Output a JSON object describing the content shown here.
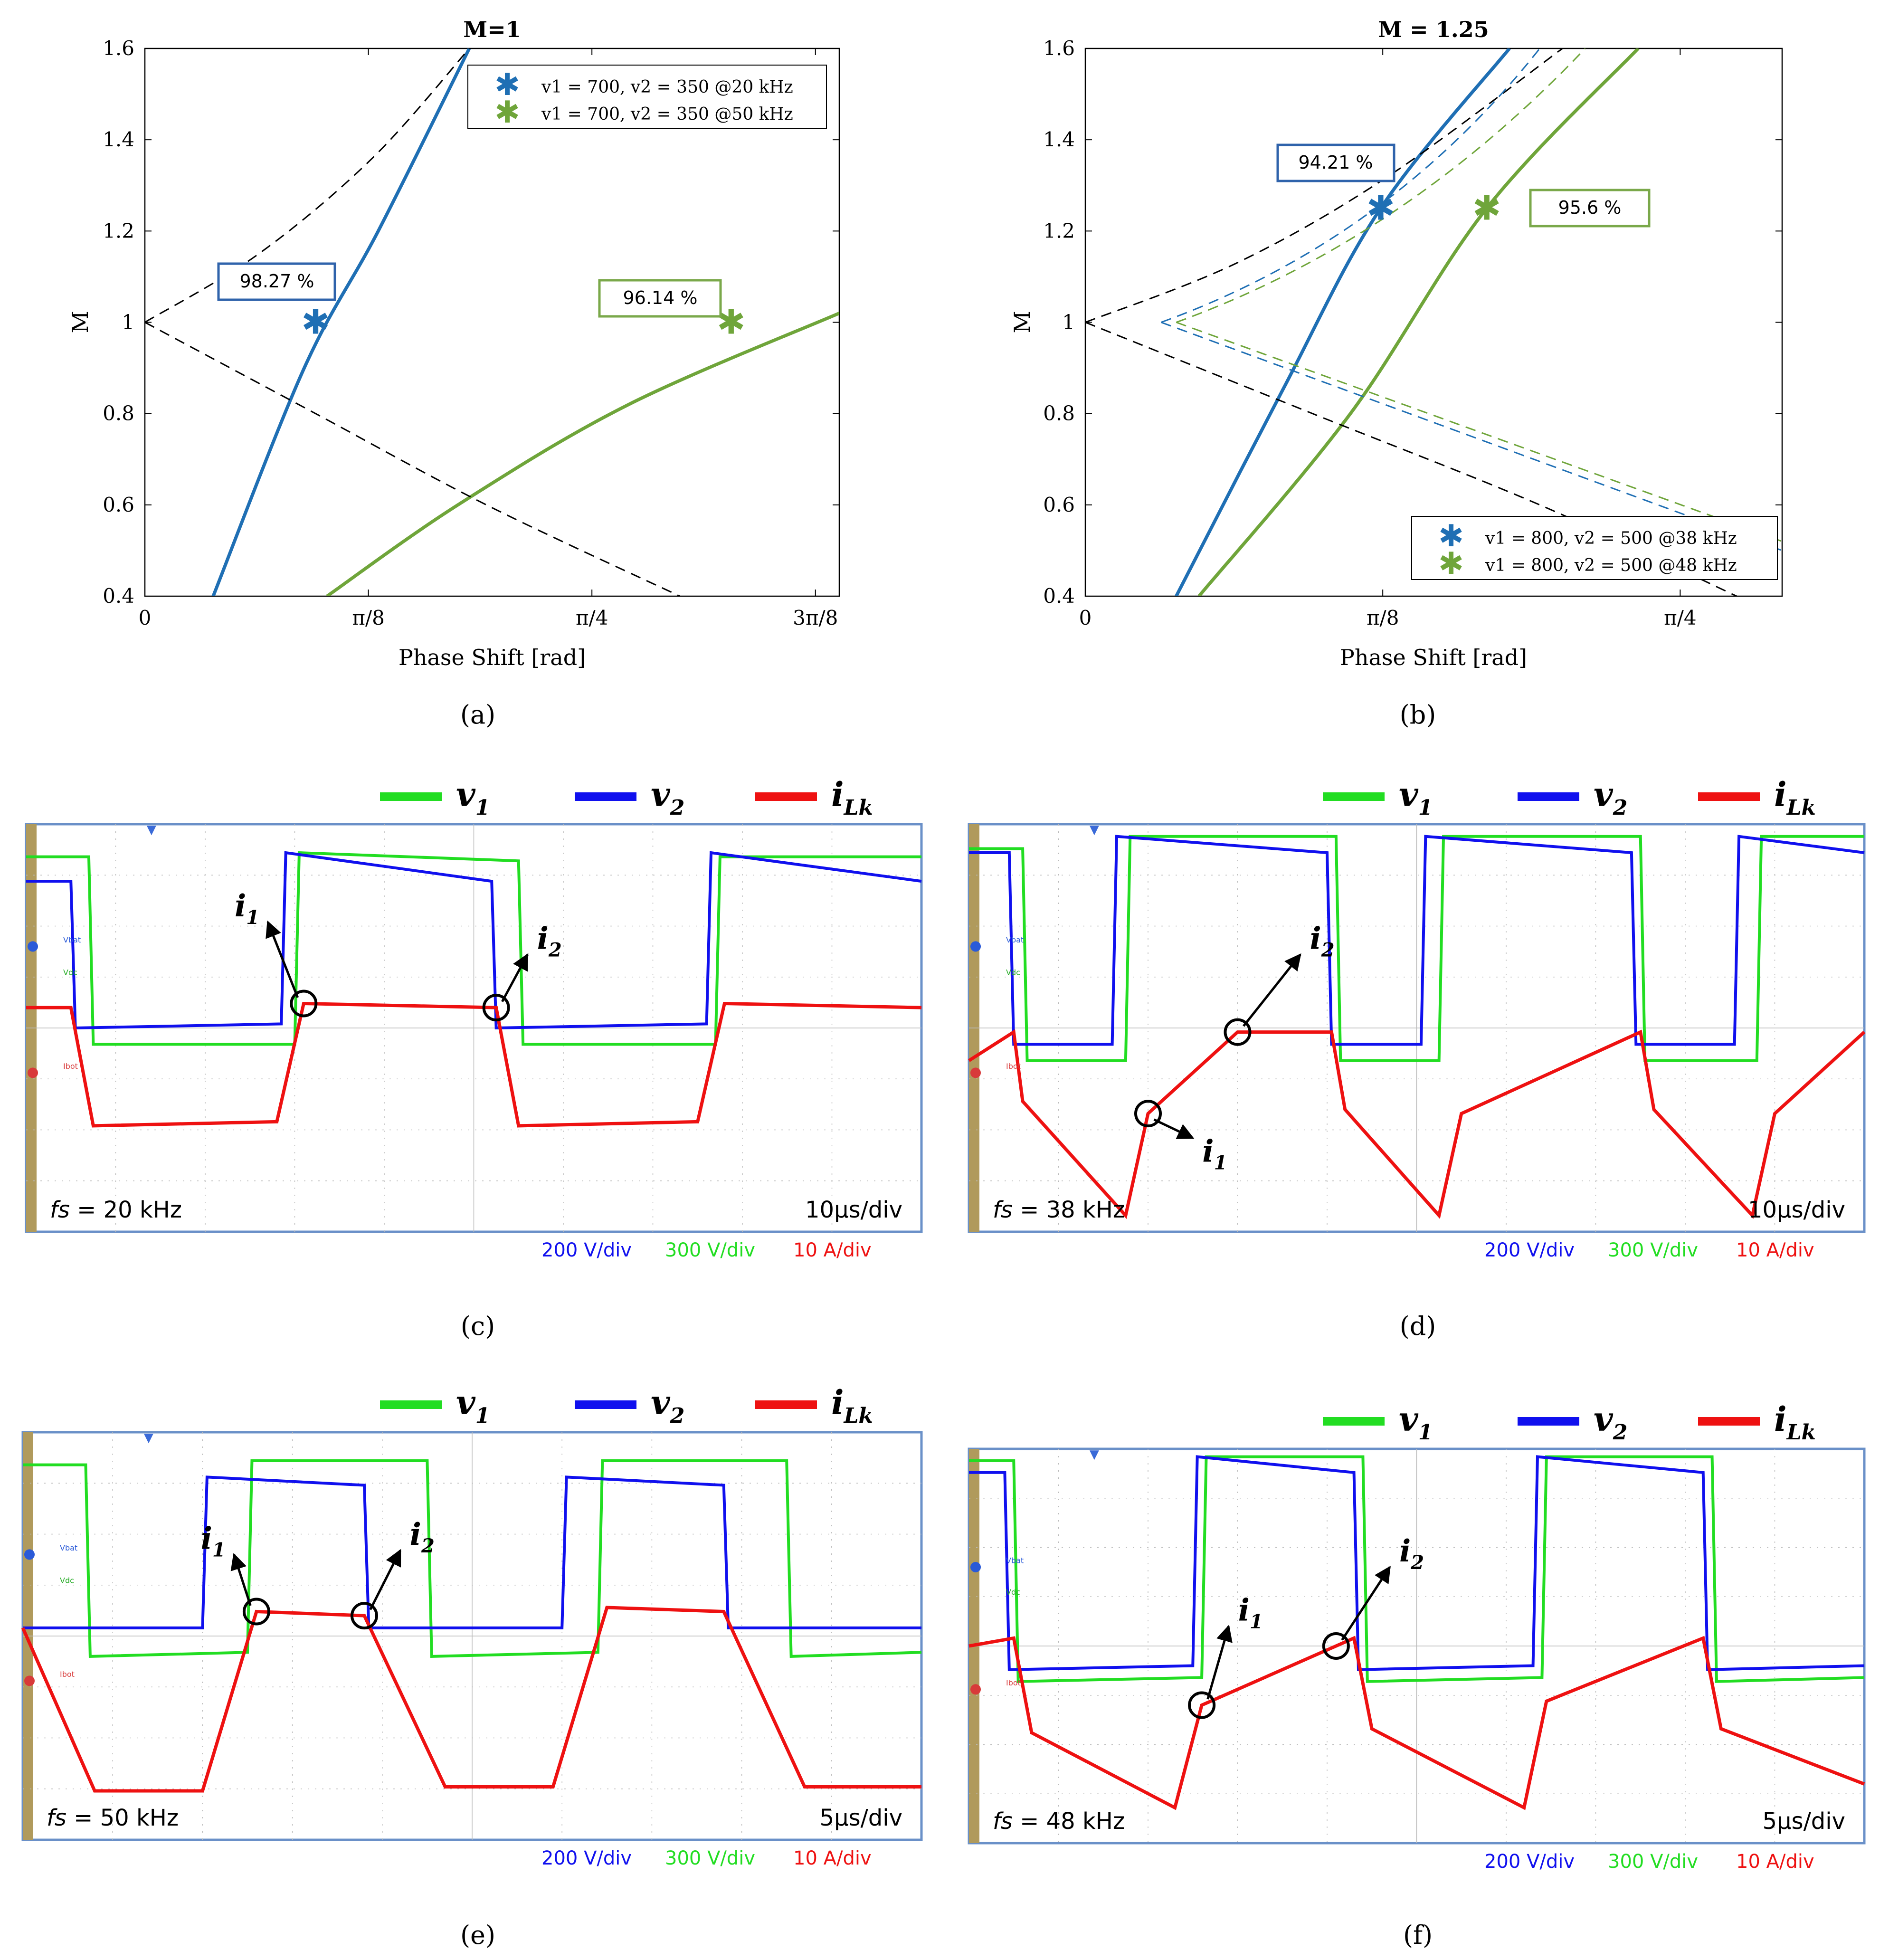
{
  "chart_data": [
    {
      "type": "line",
      "panel": "(a)",
      "title": "M=1",
      "xlabel": "Phase Shift [rad]",
      "ylabel": "M",
      "xlim": [
        0,
        1.22
      ],
      "ylim": [
        0.4,
        1.6
      ],
      "xticks": [
        {
          "v": 0,
          "label": "0"
        },
        {
          "v": 0.3927,
          "label": "π/8"
        },
        {
          "v": 0.7854,
          "label": "π/4"
        },
        {
          "v": 1.1781,
          "label": "3π/8"
        }
      ],
      "yticks": [
        {
          "v": 0.4,
          "label": "0.4"
        },
        {
          "v": 0.6,
          "label": "0.6"
        },
        {
          "v": 0.8,
          "label": "0.8"
        },
        {
          "v": 1.0,
          "label": "1"
        },
        {
          "v": 1.2,
          "label": "1.2"
        },
        {
          "v": 1.4,
          "label": "1.4"
        },
        {
          "v": 1.6,
          "label": "1.6"
        }
      ],
      "legend": "top-right",
      "series": [
        {
          "name": "v1 = 700, v2 = 350 @20 kHz",
          "color": "#1f6fb4",
          "x": [
            0.12,
            0.28,
            0.41,
            0.57
          ],
          "y": [
            0.4,
            0.9,
            1.2,
            1.6
          ],
          "marker": {
            "x": 0.3,
            "y": 1.0
          },
          "annotation": "98.27 %"
        },
        {
          "name": "v1 = 700, v2 = 350 @50 kHz",
          "color": "#6fa53a",
          "x": [
            0.32,
            0.55,
            0.85,
            1.22
          ],
          "y": [
            0.4,
            0.6,
            0.82,
            1.02
          ],
          "marker": {
            "x": 1.03,
            "y": 1.0
          },
          "annotation": "96.14 %"
        },
        {
          "name": "boundary-upper",
          "color": "#000000",
          "dash": true,
          "x": [
            0,
            0.2,
            0.4,
            0.57
          ],
          "y": [
            1.0,
            1.15,
            1.36,
            1.6
          ]
        },
        {
          "name": "boundary-lower",
          "color": "#000000",
          "dash": true,
          "x": [
            0,
            0.3,
            0.6,
            0.94
          ],
          "y": [
            1.0,
            0.8,
            0.6,
            0.4
          ]
        }
      ]
    },
    {
      "type": "line",
      "panel": "(b)",
      "title": "M = 1.25",
      "xlabel": "Phase Shift [rad]",
      "ylabel": "M",
      "xlim": [
        0,
        0.92
      ],
      "ylim": [
        0.4,
        1.6
      ],
      "xticks": [
        {
          "v": 0,
          "label": "0"
        },
        {
          "v": 0.3927,
          "label": "π/8"
        },
        {
          "v": 0.7854,
          "label": "π/4"
        }
      ],
      "yticks": [
        {
          "v": 0.4,
          "label": "0.4"
        },
        {
          "v": 0.6,
          "label": "0.6"
        },
        {
          "v": 0.8,
          "label": "0.8"
        },
        {
          "v": 1.0,
          "label": "1"
        },
        {
          "v": 1.2,
          "label": "1.2"
        },
        {
          "v": 1.4,
          "label": "1.4"
        },
        {
          "v": 1.6,
          "label": "1.6"
        }
      ],
      "legend": "bottom-right",
      "series": [
        {
          "name": "v1 = 800, v2 = 500 @38 kHz",
          "color": "#1f6fb4",
          "x": [
            0.12,
            0.26,
            0.39,
            0.56
          ],
          "y": [
            0.4,
            0.85,
            1.25,
            1.6
          ],
          "marker": {
            "x": 0.39,
            "y": 1.25
          },
          "annotation": "94.21 %"
        },
        {
          "name": "v1 = 800, v2 = 500 @48 kHz",
          "color": "#6fa53a",
          "x": [
            0.15,
            0.35,
            0.53,
            0.73
          ],
          "y": [
            0.4,
            0.8,
            1.25,
            1.6
          ],
          "marker": {
            "x": 0.53,
            "y": 1.25
          },
          "annotation": "95.6 %"
        },
        {
          "name": "boundary-upper",
          "color": "#000000",
          "dash": true,
          "x": [
            0,
            0.2,
            0.4,
            0.63
          ],
          "y": [
            1.0,
            1.13,
            1.32,
            1.6
          ]
        },
        {
          "name": "boundary-lower",
          "color": "#000000",
          "dash": true,
          "x": [
            0,
            0.3,
            0.6,
            0.86
          ],
          "y": [
            1.0,
            0.8,
            0.6,
            0.4
          ]
        }
      ]
    }
  ],
  "panel_labels": [
    "(a)",
    "(b)",
    "(c)",
    "(d)",
    "(e)",
    "(f)"
  ],
  "scope_legend": {
    "v1": "v",
    "v1_sub": "1",
    "v2": "v",
    "v2_sub": "2",
    "ilk": "i",
    "ilk_sub": "Lk"
  },
  "scope_colors": {
    "v1": "#22dd22",
    "v2": "#1010ee",
    "ilk": "#ee1111"
  },
  "scopes": [
    {
      "id": "c",
      "fs_prefix": "fs",
      "fs_value": " = 20 kHz",
      "time_div": "10µs/div",
      "v2_scale": "200 V/div",
      "v1_scale": "300 V/div",
      "i_scale": "10 A/div",
      "ch1_label": "Vbat",
      "ch2_label": "Vdc",
      "i_label": "Ibot",
      "i1": "i",
      "i1_sub": "1",
      "i2": "i",
      "i2_sub": "2"
    },
    {
      "id": "d",
      "fs_prefix": "fs",
      "fs_value": " = 38 kHz",
      "time_div": "10µs/div",
      "v2_scale": "200 V/div",
      "v1_scale": "300 V/div",
      "i_scale": "10 A/div",
      "ch1_label": "Vbat",
      "ch2_label": "Vdc",
      "i_label": "Ibot",
      "i1": "i",
      "i1_sub": "1",
      "i2": "i",
      "i2_sub": "2"
    },
    {
      "id": "e",
      "fs_prefix": "fs",
      "fs_value": " = 50 kHz",
      "time_div": "5µs/div",
      "v2_scale": "200 V/div",
      "v1_scale": "300 V/div",
      "i_scale": "10 A/div",
      "ch1_label": "Vbat",
      "ch2_label": "Vdc",
      "i_label": "Ibot",
      "i1": "i",
      "i1_sub": "1",
      "i2": "i",
      "i2_sub": "2"
    },
    {
      "id": "f",
      "fs_prefix": "fs",
      "fs_value": " = 48 kHz",
      "time_div": "5µs/div",
      "v2_scale": "200 V/div",
      "v1_scale": "300 V/div",
      "i_scale": "10 A/div",
      "ch1_label": "Vbat",
      "ch2_label": "Vdc",
      "i_label": "Ibot",
      "i1": "i",
      "i1_sub": "1",
      "i2": "i",
      "i2_sub": "2"
    }
  ]
}
